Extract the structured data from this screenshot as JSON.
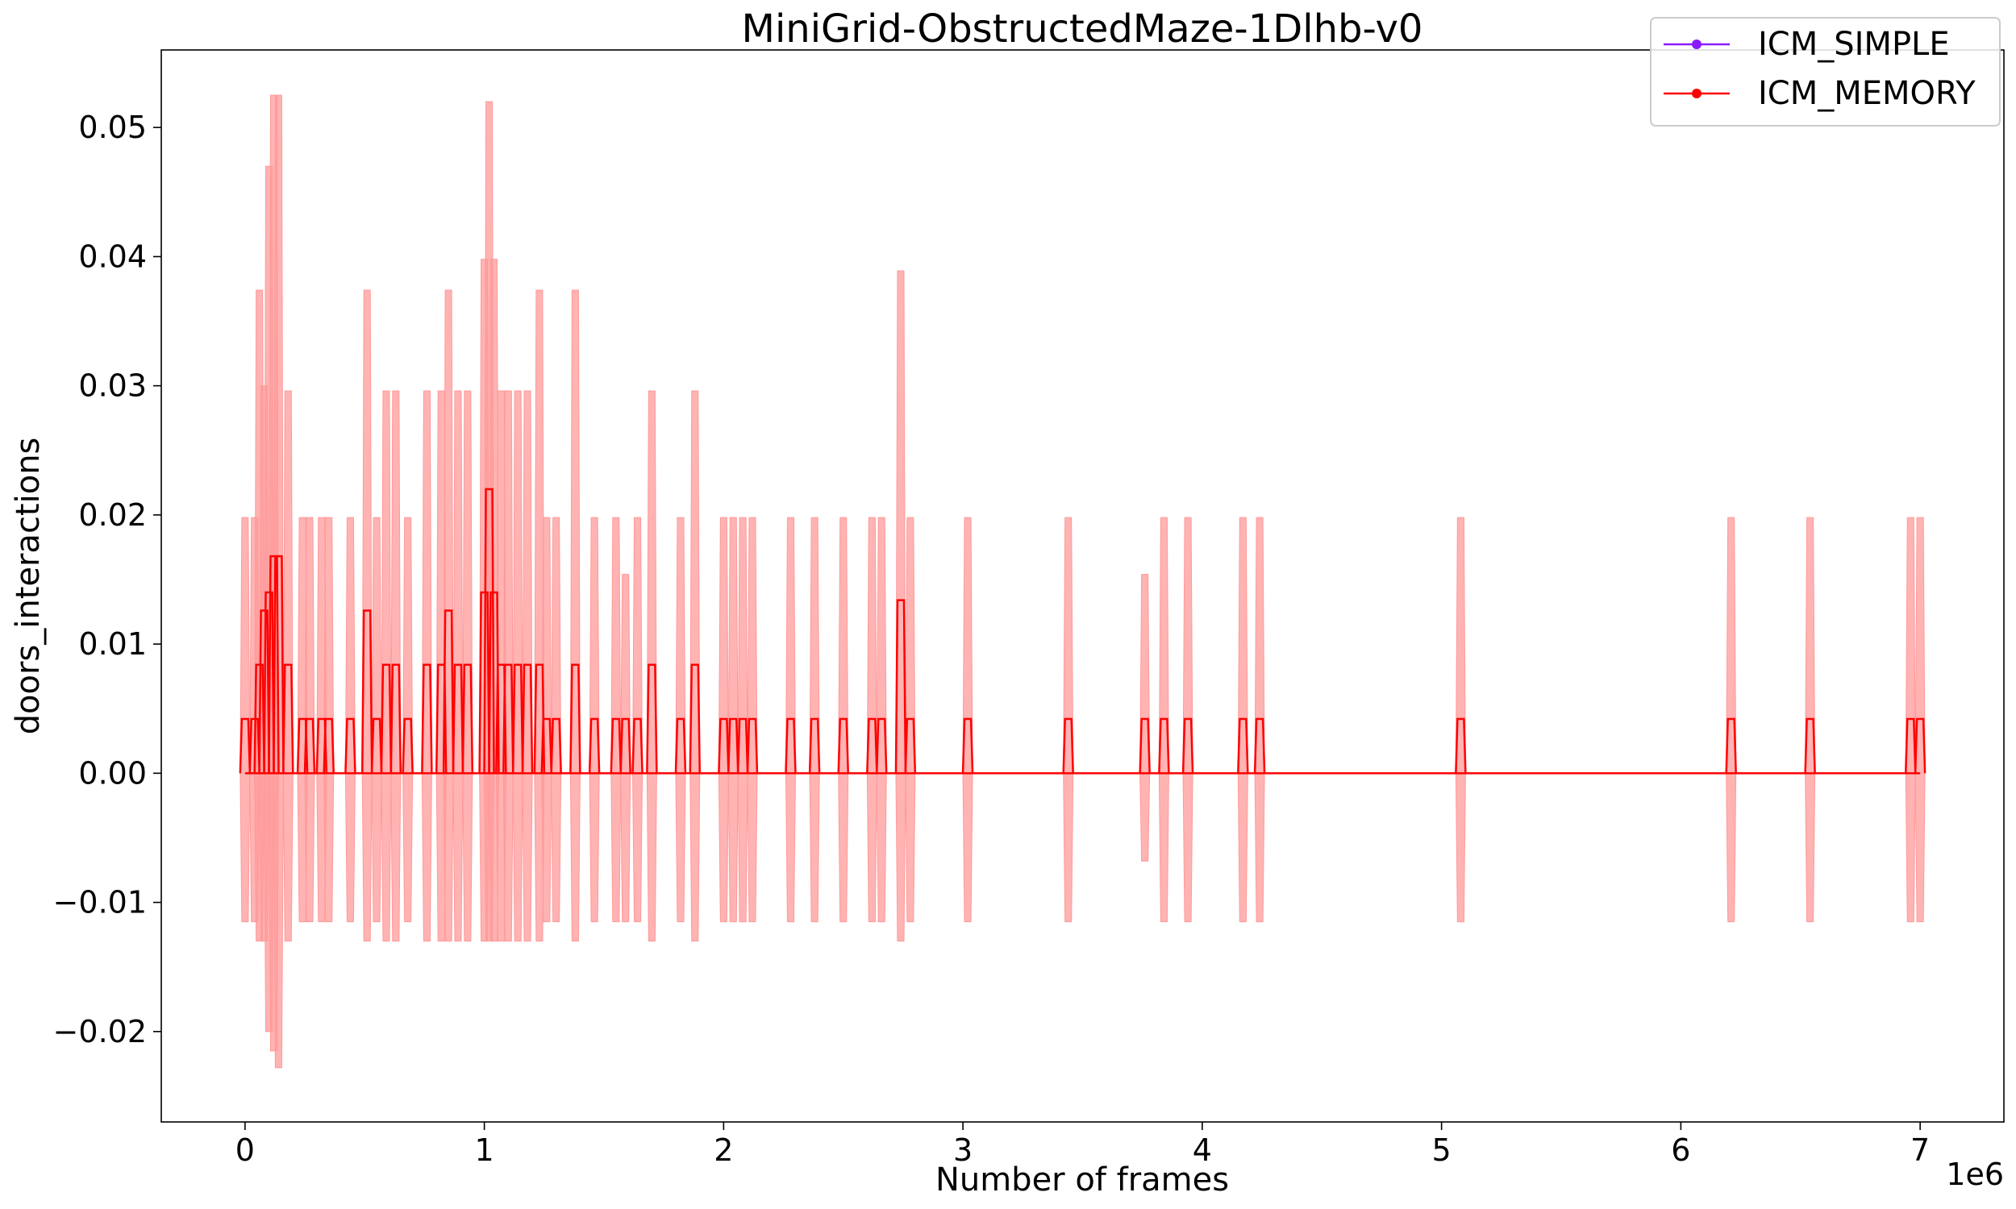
{
  "chart_data": {
    "type": "line",
    "title": "MiniGrid-ObstructedMaze-1Dlhb-v0",
    "xlabel": "Number of frames",
    "ylabel": "doors_interactions",
    "x_offset_text": "1e6",
    "xlim": [
      -0.35,
      7.35
    ],
    "ylim": [
      -0.027,
      0.056
    ],
    "x_ticks": [
      0,
      1,
      2,
      3,
      4,
      5,
      6,
      7
    ],
    "x_tick_labels": [
      "0",
      "1",
      "2",
      "3",
      "4",
      "5",
      "6",
      "7"
    ],
    "y_ticks": [
      -0.02,
      -0.01,
      0.0,
      0.01,
      0.02,
      0.03,
      0.04,
      0.05
    ],
    "y_tick_labels": [
      "−0.02",
      "−0.01",
      "0.00",
      "0.01",
      "0.02",
      "0.03",
      "0.04",
      "0.05"
    ],
    "grid": false,
    "legend_position": "top-right",
    "colors": {
      "ICM_SIMPLE": "#8b1aff",
      "ICM_MEMORY": "#ff0000",
      "band": "#ff9999"
    },
    "series": [
      {
        "name": "ICM_SIMPLE",
        "x": [],
        "mean": []
      },
      {
        "name": "ICM_MEMORY",
        "x": [
          0.0,
          0.04,
          0.06,
          0.08,
          0.1,
          0.12,
          0.14,
          0.18,
          0.24,
          0.27,
          0.32,
          0.35,
          0.44,
          0.51,
          0.55,
          0.59,
          0.63,
          0.68,
          0.76,
          0.82,
          0.85,
          0.89,
          0.93,
          1.0,
          1.02,
          1.04,
          1.07,
          1.1,
          1.14,
          1.18,
          1.23,
          1.26,
          1.3,
          1.38,
          1.46,
          1.55,
          1.59,
          1.64,
          1.7,
          1.82,
          1.88,
          2.0,
          2.04,
          2.08,
          2.12,
          2.28,
          2.38,
          2.5,
          2.62,
          2.66,
          2.74,
          2.78,
          3.02,
          3.44,
          3.76,
          3.84,
          3.94,
          4.17,
          4.24,
          5.08,
          6.21,
          6.54,
          6.96,
          7.0
        ],
        "mean": [
          0.0042,
          0.0042,
          0.0084,
          0.0126,
          0.014,
          0.0168,
          0.0168,
          0.0084,
          0.0042,
          0.0042,
          0.0042,
          0.0042,
          0.0042,
          0.0126,
          0.0042,
          0.0084,
          0.0084,
          0.0042,
          0.0084,
          0.0084,
          0.0126,
          0.0084,
          0.0084,
          0.014,
          0.022,
          0.014,
          0.0084,
          0.0084,
          0.0084,
          0.0084,
          0.0084,
          0.0042,
          0.0042,
          0.0084,
          0.0042,
          0.0042,
          0.0042,
          0.0042,
          0.0084,
          0.0042,
          0.0084,
          0.0042,
          0.0042,
          0.0042,
          0.0042,
          0.0042,
          0.0042,
          0.0042,
          0.0042,
          0.0042,
          0.0134,
          0.0042,
          0.0042,
          0.0042,
          0.0042,
          0.0042,
          0.0042,
          0.0042,
          0.0042,
          0.0042,
          0.0042,
          0.0042,
          0.0042,
          0.0042
        ],
        "upper": [
          0.0198,
          0.0198,
          0.0374,
          0.03,
          0.047,
          0.0525,
          0.0525,
          0.0296,
          0.0198,
          0.0198,
          0.0198,
          0.0198,
          0.0198,
          0.0374,
          0.0198,
          0.0296,
          0.0296,
          0.0198,
          0.0296,
          0.0296,
          0.0374,
          0.0296,
          0.0296,
          0.0398,
          0.052,
          0.0398,
          0.0296,
          0.0296,
          0.0296,
          0.0296,
          0.0374,
          0.0198,
          0.0198,
          0.0374,
          0.0198,
          0.0198,
          0.0154,
          0.0198,
          0.0296,
          0.0198,
          0.0296,
          0.0198,
          0.0198,
          0.0198,
          0.0198,
          0.0198,
          0.0198,
          0.0198,
          0.0198,
          0.0198,
          0.0389,
          0.0198,
          0.0198,
          0.0198,
          0.0154,
          0.0198,
          0.0198,
          0.0198,
          0.0198,
          0.0198,
          0.0198,
          0.0198,
          0.0198,
          0.0198
        ],
        "lower": [
          -0.0115,
          -0.0115,
          -0.013,
          -0.013,
          -0.02,
          -0.0215,
          -0.0228,
          -0.013,
          -0.0115,
          -0.0115,
          -0.0115,
          -0.0115,
          -0.0115,
          -0.013,
          -0.0115,
          -0.013,
          -0.013,
          -0.0115,
          -0.013,
          -0.013,
          -0.013,
          -0.013,
          -0.013,
          -0.013,
          -0.013,
          -0.013,
          -0.013,
          -0.013,
          -0.013,
          -0.013,
          -0.013,
          -0.0115,
          -0.0115,
          -0.013,
          -0.0115,
          -0.0115,
          -0.0115,
          -0.0115,
          -0.013,
          -0.0115,
          -0.013,
          -0.0115,
          -0.0115,
          -0.0115,
          -0.0115,
          -0.0115,
          -0.0115,
          -0.0115,
          -0.0115,
          -0.0115,
          -0.013,
          -0.0115,
          -0.0115,
          -0.0115,
          -0.0068,
          -0.0115,
          -0.0115,
          -0.0115,
          -0.0115,
          -0.0115,
          -0.0115,
          -0.0115,
          -0.0115,
          -0.0115
        ]
      }
    ]
  }
}
